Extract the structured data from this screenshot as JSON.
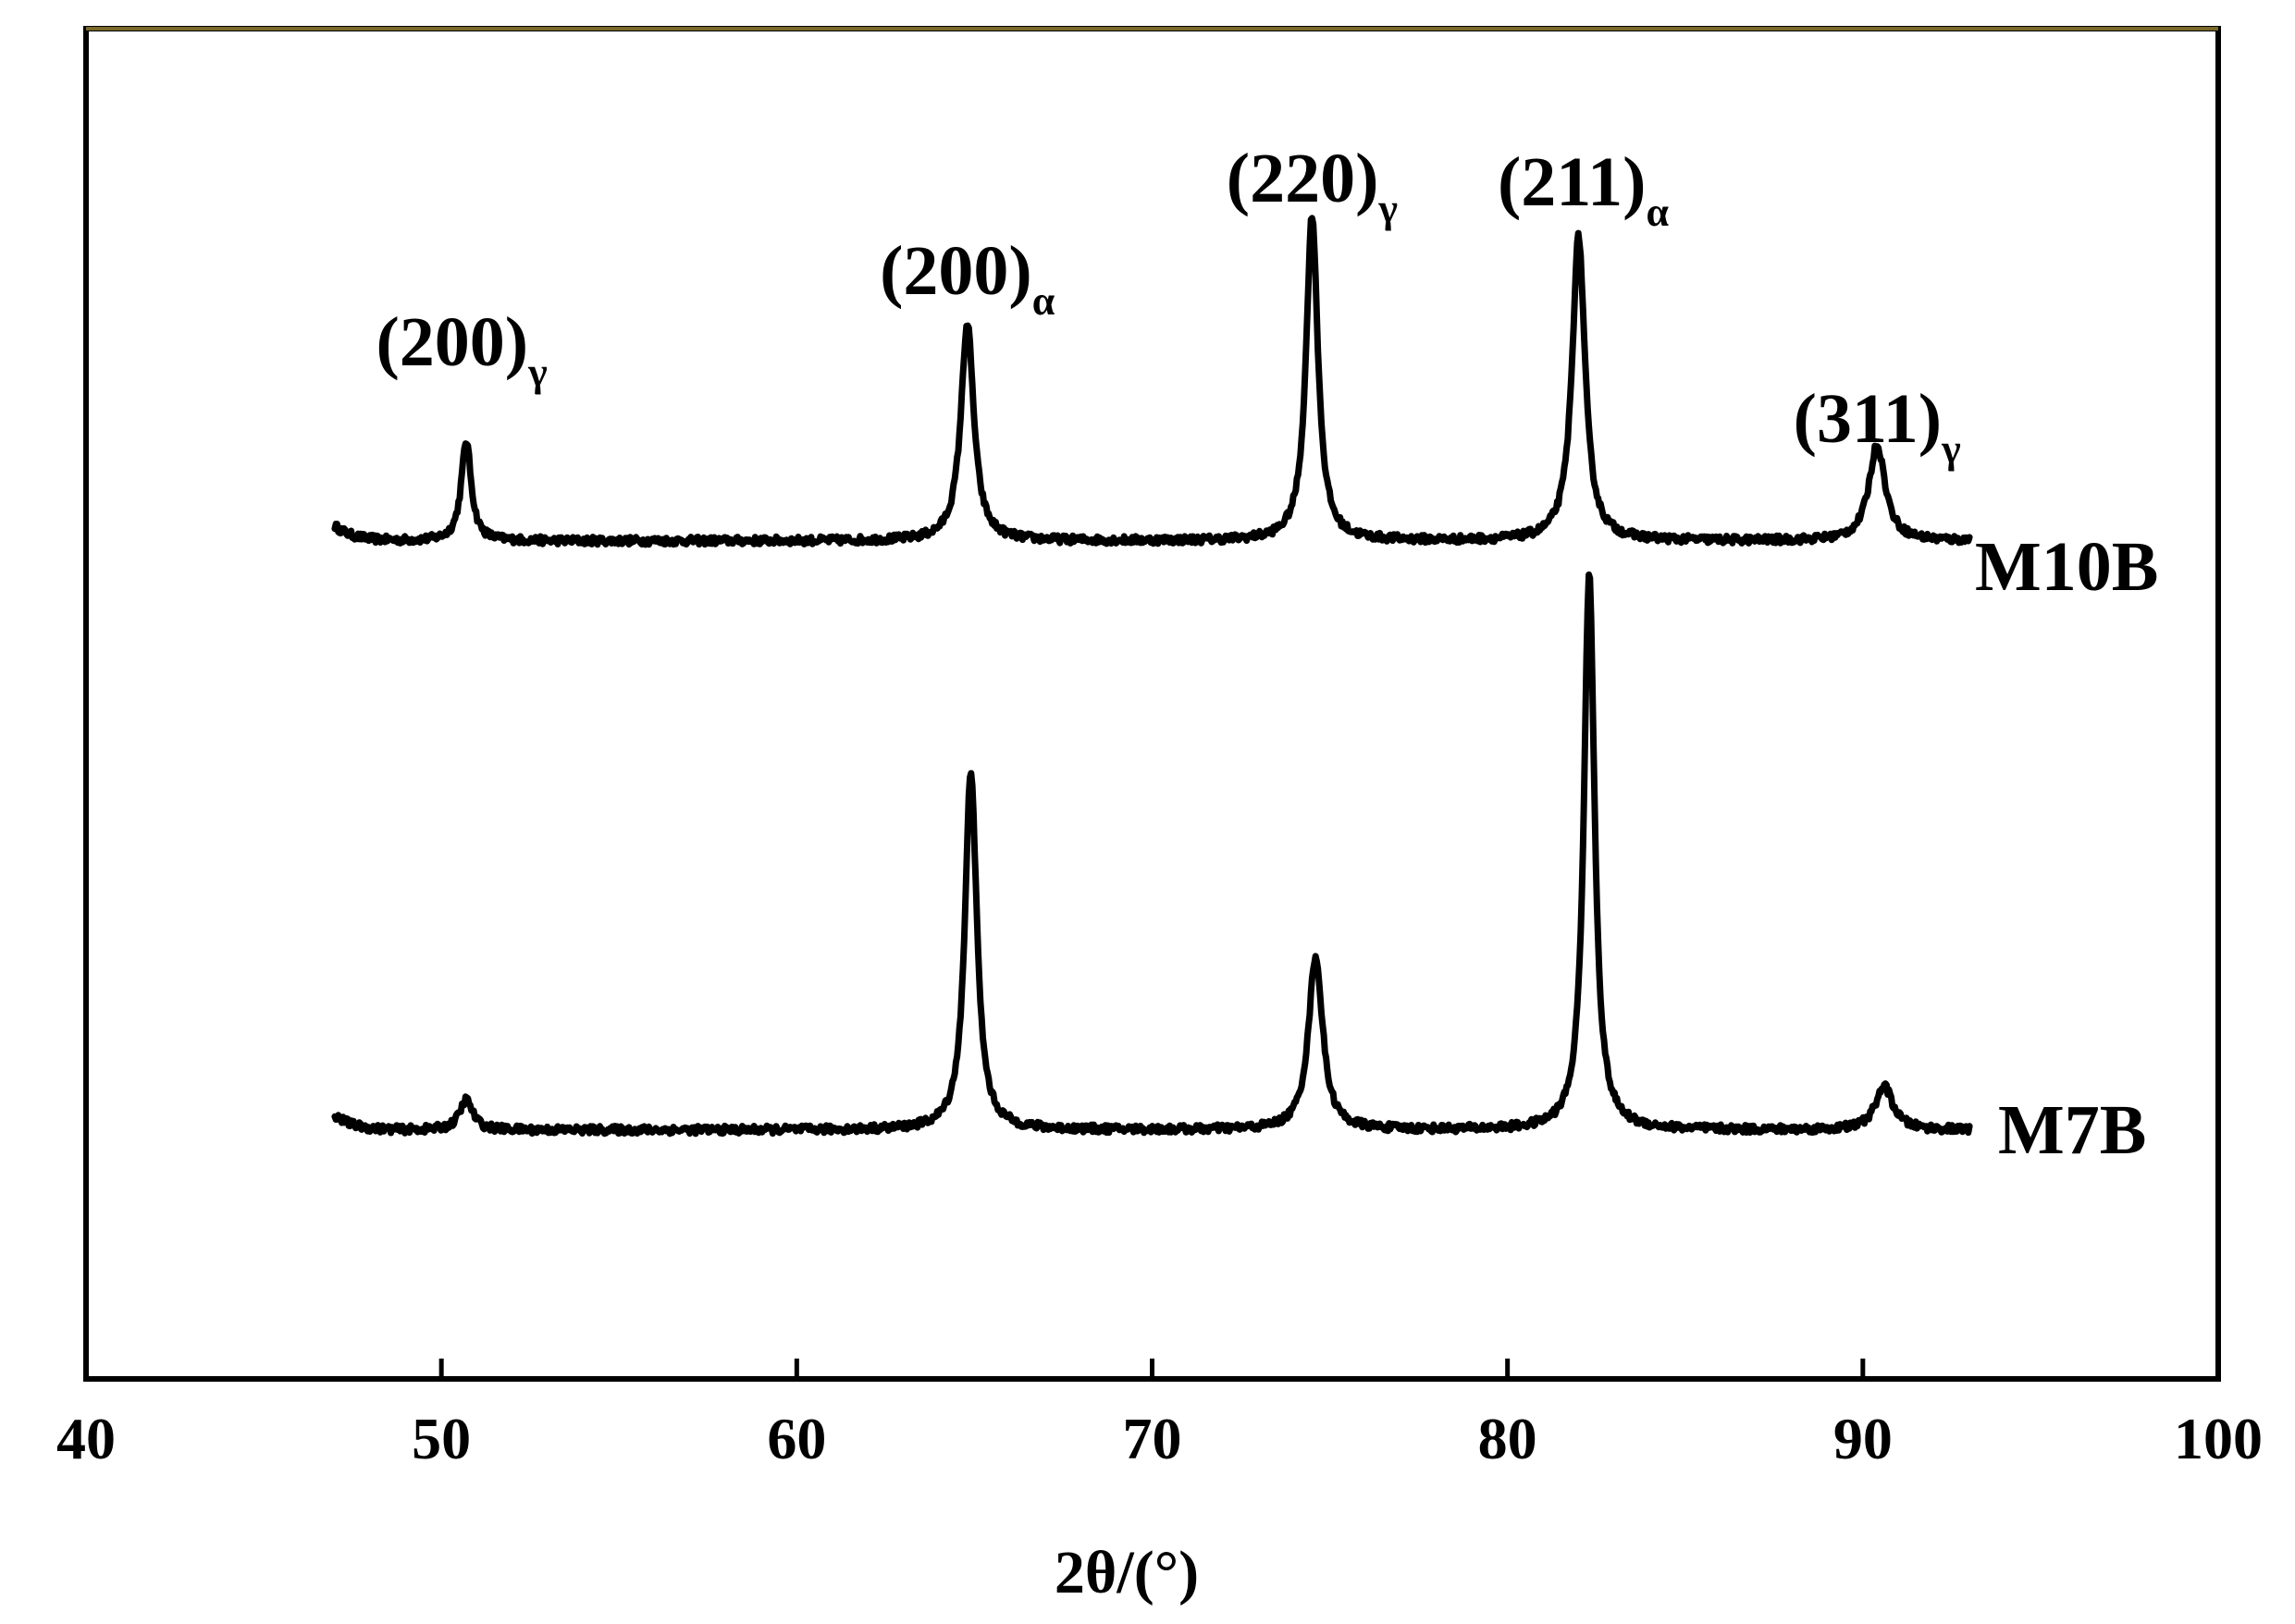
{
  "chart_data": {
    "type": "line",
    "title": "",
    "xlabel": "2θ/(°)",
    "ylabel": "",
    "xlim": [
      40,
      100
    ],
    "x_ticks": [
      40,
      50,
      60,
      70,
      80,
      90,
      100
    ],
    "x_tick_labels": [
      "40",
      "50",
      "60",
      "70",
      "80",
      "90",
      "100"
    ],
    "y_ticks_shown": false,
    "grid": false,
    "legend": "none (series labelled at right end of each trace)",
    "x_range_measured": [
      47,
      93
    ],
    "series": [
      {
        "name": "M10B",
        "baseline": 0,
        "peaks": [
          {
            "two_theta": 50.7,
            "intensity": 0.23,
            "width": 0.17
          },
          {
            "two_theta": 64.8,
            "intensity": 0.5,
            "width": 0.22
          },
          {
            "two_theta": 74.5,
            "intensity": 0.75,
            "width": 0.2
          },
          {
            "two_theta": 82.0,
            "intensity": 0.7,
            "width": 0.22
          },
          {
            "two_theta": 90.4,
            "intensity": 0.22,
            "width": 0.28
          }
        ]
      },
      {
        "name": "M7B",
        "baseline": 0,
        "peaks": [
          {
            "two_theta": 50.7,
            "intensity": 0.07,
            "width": 0.22
          },
          {
            "two_theta": 64.9,
            "intensity": 0.83,
            "width": 0.2
          },
          {
            "two_theta": 74.6,
            "intensity": 0.4,
            "width": 0.24
          },
          {
            "two_theta": 82.3,
            "intensity": 1.28,
            "width": 0.18
          },
          {
            "two_theta": 90.6,
            "intensity": 0.1,
            "width": 0.3
          }
        ]
      }
    ],
    "annotations": [
      {
        "text": "(200)",
        "subscript": "γ",
        "two_theta": 50.7
      },
      {
        "text": "(200)",
        "subscript": "α",
        "two_theta": 64.8
      },
      {
        "text": "(220)",
        "subscript": "γ",
        "two_theta": 74.5
      },
      {
        "text": "(211)",
        "subscript": "α",
        "two_theta": 82.0
      },
      {
        "text": "(311)",
        "subscript": "γ",
        "two_theta": 90.4
      }
    ]
  }
}
